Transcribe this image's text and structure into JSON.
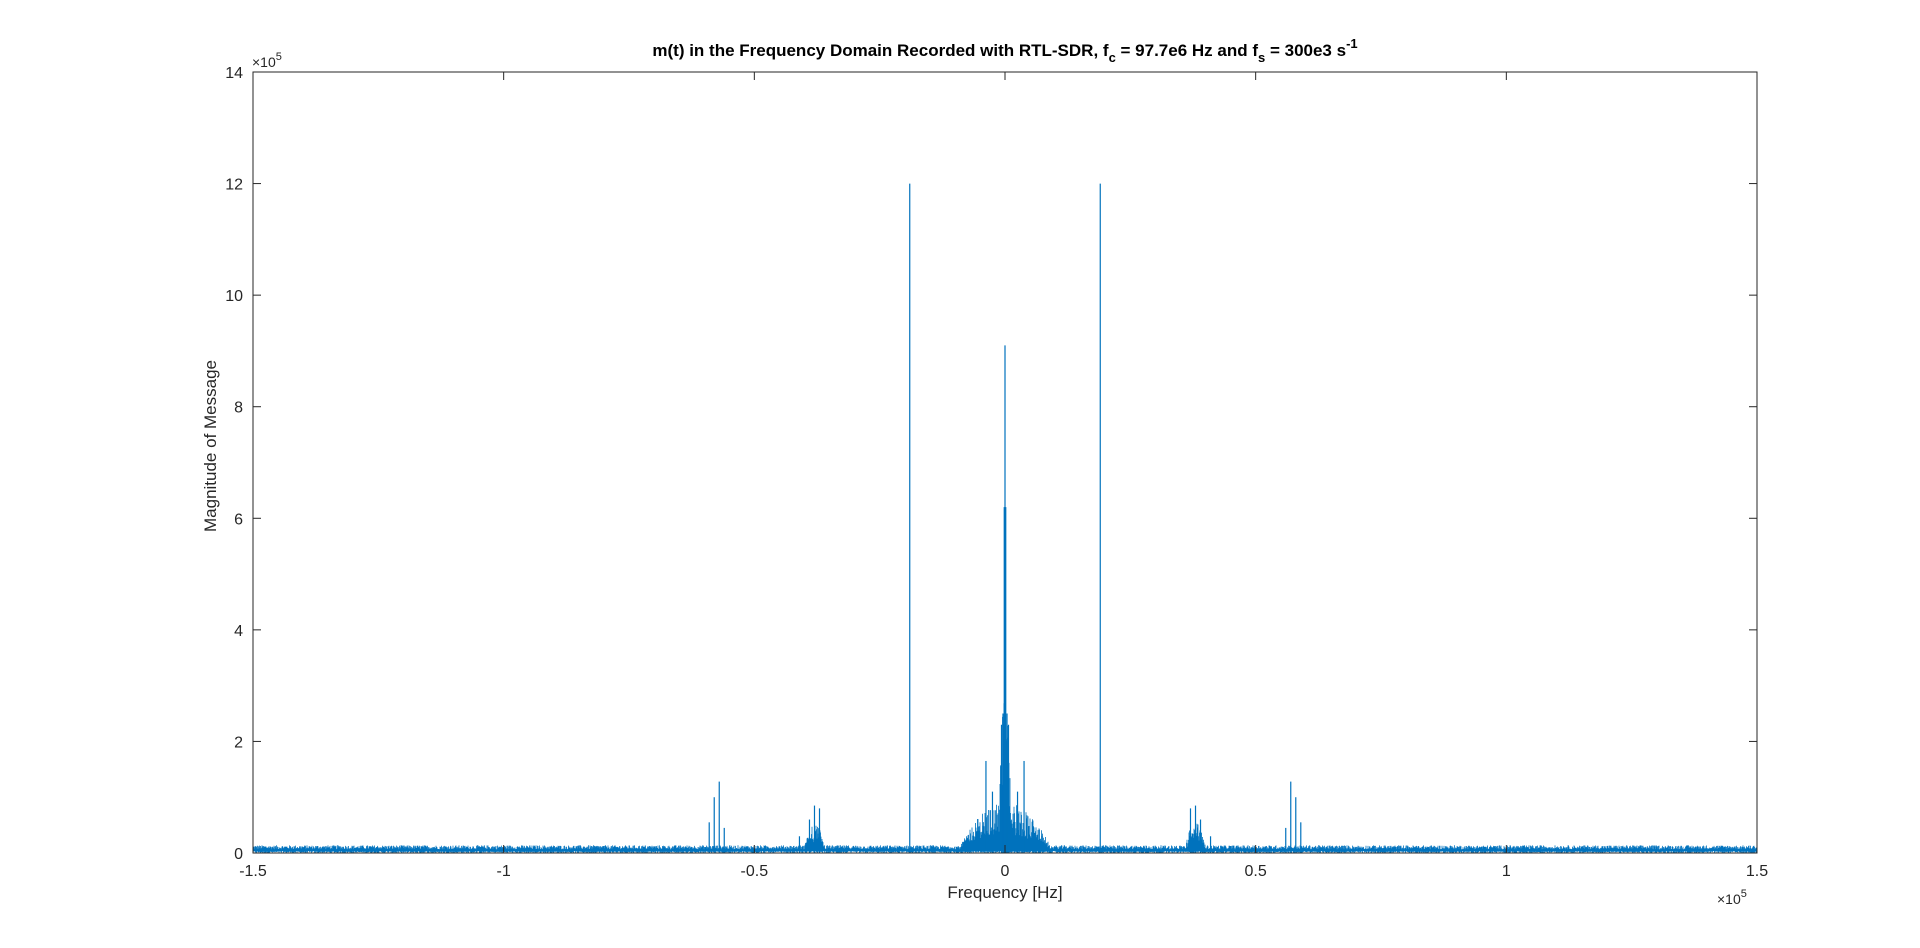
{
  "colors": {
    "series": "#0072BD",
    "axes": "#262626",
    "background": "#ffffff"
  },
  "chart_data": {
    "type": "line",
    "title": {
      "prefix": "m(t) in the Frequency Domain Recorded with RTL-SDR, f",
      "fc_sub": "c",
      "mid": " = 97.7e6 Hz and f",
      "fs_sub": "s",
      "suffix": " = 300e3 s",
      "sup": "-1"
    },
    "xlabel": "Frequency [Hz]",
    "ylabel": "Magnitude of Message",
    "x_exponent": {
      "base": "×10",
      "power": "5"
    },
    "y_exponent": {
      "base": "×10",
      "power": "5"
    },
    "xlim": [
      -1.5,
      1.5
    ],
    "ylim": [
      0,
      14
    ],
    "units_note": "x in units of 1e5 Hz, y in units of 1e5",
    "xticks": [
      -1.5,
      -1,
      -0.5,
      0,
      0.5,
      1,
      1.5
    ],
    "xtick_labels": [
      "-1.5",
      "-1",
      "-0.5",
      "0",
      "0.5",
      "1",
      "1.5"
    ],
    "yticks": [
      0,
      2,
      4,
      6,
      8,
      10,
      12,
      14
    ],
    "ytick_labels": [
      "0",
      "2",
      "4",
      "6",
      "8",
      "10",
      "12",
      "14"
    ],
    "grid": false,
    "noise_floor": 0.12,
    "spikes": [
      {
        "x": -0.19,
        "y": 12.0
      },
      {
        "x": 0.19,
        "y": 12.0
      },
      {
        "x": 0.0,
        "y": 9.1
      },
      {
        "x": -0.0015,
        "y": 6.2
      },
      {
        "x": 0.0015,
        "y": 6.2
      },
      {
        "x": -0.004,
        "y": 2.5
      },
      {
        "x": 0.004,
        "y": 2.5
      },
      {
        "x": -0.007,
        "y": 2.3
      },
      {
        "x": 0.007,
        "y": 2.3
      },
      {
        "x": -0.038,
        "y": 1.65
      },
      {
        "x": 0.038,
        "y": 1.65
      },
      {
        "x": -0.025,
        "y": 1.1
      },
      {
        "x": 0.025,
        "y": 1.1
      },
      {
        "x": -0.57,
        "y": 1.28
      },
      {
        "x": 0.57,
        "y": 1.28
      },
      {
        "x": -0.58,
        "y": 1.0
      },
      {
        "x": 0.58,
        "y": 1.0
      },
      {
        "x": -0.59,
        "y": 0.55
      },
      {
        "x": 0.59,
        "y": 0.55
      },
      {
        "x": -0.56,
        "y": 0.45
      },
      {
        "x": 0.56,
        "y": 0.45
      },
      {
        "x": -0.38,
        "y": 0.85
      },
      {
        "x": 0.38,
        "y": 0.85
      },
      {
        "x": -0.37,
        "y": 0.8
      },
      {
        "x": 0.37,
        "y": 0.8
      },
      {
        "x": -0.39,
        "y": 0.6
      },
      {
        "x": 0.39,
        "y": 0.6
      },
      {
        "x": -0.41,
        "y": 0.3
      },
      {
        "x": 0.41,
        "y": 0.3
      }
    ],
    "humps": [
      {
        "center": 0.0,
        "width": 0.09,
        "height": 0.65
      },
      {
        "center": 0.0,
        "width": 0.012,
        "height": 1.9
      },
      {
        "center": -0.38,
        "width": 0.02,
        "height": 0.35
      },
      {
        "center": 0.38,
        "width": 0.02,
        "height": 0.35
      }
    ]
  }
}
